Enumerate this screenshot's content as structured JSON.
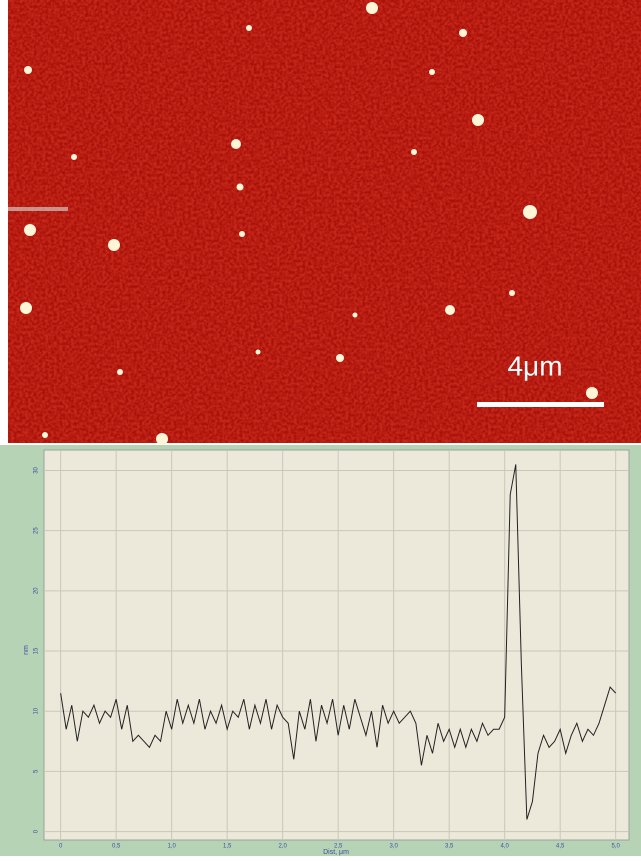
{
  "image": {
    "scale_bar_label": "4μm"
  },
  "chart_data": {
    "type": "line",
    "y_label": "nm",
    "x_label": "Dist, μm",
    "color": "#222222",
    "grid": true,
    "xlim": [
      -0.15,
      5.12
    ],
    "ylim": [
      -0.7,
      31.7
    ],
    "xticks": [
      0,
      {
        "value": 0.5,
        "label": "0,5"
      },
      {
        "value": 1,
        "label": "1,0"
      },
      {
        "value": 1.5,
        "label": "1,5"
      },
      {
        "value": 2,
        "label": "2,0"
      },
      {
        "value": 2.5,
        "label": "2,5"
      },
      {
        "value": 3,
        "label": "3,0"
      },
      {
        "value": 3.5,
        "label": "3,5"
      },
      {
        "value": 4,
        "label": "4,0"
      },
      {
        "value": 4.5,
        "label": "4,5"
      },
      {
        "value": 5,
        "label": "5,0"
      }
    ],
    "yticks": [
      0,
      5,
      10,
      15,
      20,
      25,
      30
    ],
    "x": [
      0,
      0.05,
      0.1,
      0.15,
      0.2,
      0.25,
      0.3,
      0.35,
      0.4,
      0.45,
      0.5,
      0.55,
      0.6,
      0.65,
      0.7,
      0.75,
      0.8,
      0.85,
      0.9,
      0.95,
      1,
      1.05,
      1.1,
      1.15,
      1.2,
      1.25,
      1.3,
      1.35,
      1.4,
      1.45,
      1.5,
      1.55,
      1.6,
      1.65,
      1.7,
      1.75,
      1.8,
      1.85,
      1.9,
      1.95,
      2,
      2.05,
      2.1,
      2.15,
      2.2,
      2.25,
      2.3,
      2.35,
      2.4,
      2.45,
      2.5,
      2.55,
      2.6,
      2.65,
      2.7,
      2.75,
      2.8,
      2.85,
      2.9,
      2.95,
      3,
      3.05,
      3.1,
      3.15,
      3.2,
      3.25,
      3.3,
      3.35,
      3.4,
      3.45,
      3.5,
      3.55,
      3.6,
      3.65,
      3.7,
      3.75,
      3.8,
      3.85,
      3.9,
      3.95,
      4,
      4.05,
      4.1,
      4.15,
      4.2,
      4.25,
      4.3,
      4.35,
      4.4,
      4.45,
      4.5,
      4.55,
      4.6,
      4.65,
      4.7,
      4.75,
      4.8,
      4.85,
      4.9,
      4.95,
      5
    ],
    "values": [
      11.5,
      8.5,
      10.5,
      7.5,
      10,
      9.5,
      10.5,
      9,
      10,
      9.5,
      11,
      8.5,
      10.5,
      7.5,
      8,
      7.5,
      7,
      8,
      7.5,
      10,
      8.5,
      11,
      9,
      10.5,
      9,
      11,
      8.5,
      10,
      9,
      10.5,
      8.5,
      10,
      9.5,
      11,
      8.5,
      10.5,
      9,
      11,
      8.5,
      10.5,
      9.5,
      9,
      6,
      10,
      8.5,
      11,
      7.5,
      10.5,
      9,
      11,
      8,
      10.5,
      8.5,
      11,
      9.5,
      8,
      10,
      7,
      10.5,
      9,
      10,
      9,
      9.5,
      10,
      9,
      5.5,
      8,
      6.5,
      9,
      7.5,
      8.5,
      7,
      8.5,
      7,
      8.5,
      7.5,
      9,
      8,
      8.5,
      8.5,
      9.5,
      28,
      30.5,
      14,
      1,
      2.5,
      6.5,
      8,
      7,
      7.5,
      8.5,
      6.5,
      8,
      9,
      7.5,
      8.5,
      8,
      9,
      10.5,
      12,
      11.5
    ]
  }
}
